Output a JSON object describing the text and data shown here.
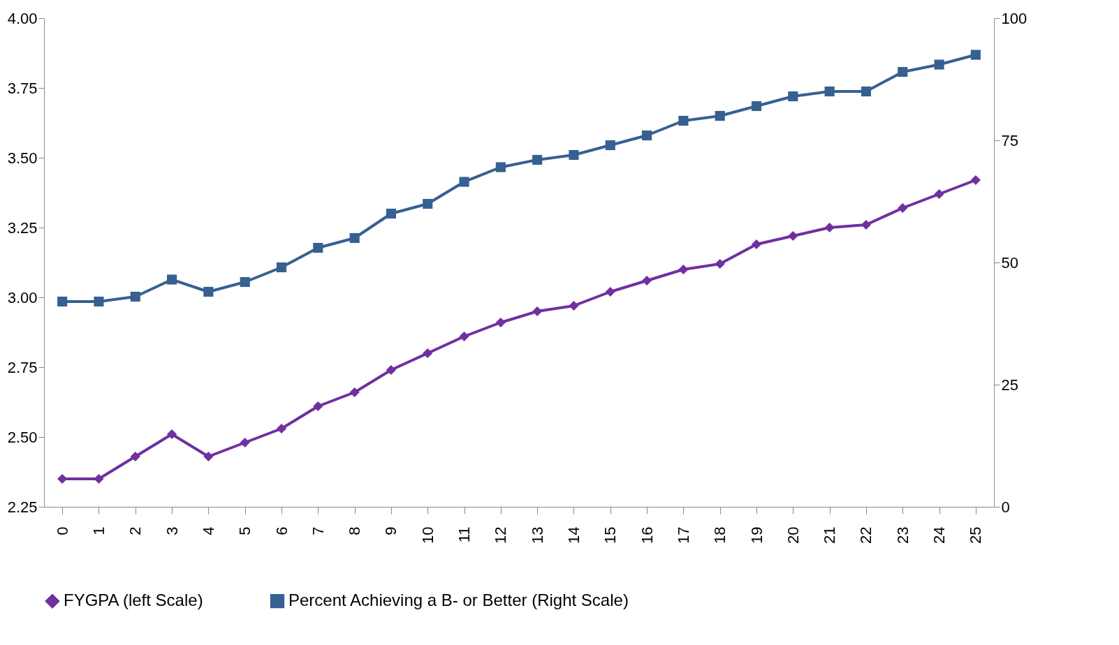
{
  "chart_data": {
    "type": "line",
    "categories": [
      "0",
      "1",
      "2",
      "3",
      "4",
      "5",
      "6",
      "7",
      "8",
      "9",
      "10",
      "11",
      "12",
      "13",
      "14",
      "15",
      "16",
      "17",
      "18",
      "19",
      "20",
      "21",
      "22",
      "23",
      "24",
      "25"
    ],
    "series": [
      {
        "name": "FYGPA (left Scale)",
        "color": "#7030a0",
        "marker": "diamond",
        "values": [
          2.35,
          2.35,
          2.43,
          2.51,
          2.43,
          2.48,
          2.53,
          2.61,
          2.66,
          2.74,
          2.8,
          2.86,
          2.91,
          2.95,
          2.97,
          3.02,
          3.06,
          3.1,
          3.12,
          3.19,
          3.22,
          3.25,
          3.26,
          3.32,
          3.37,
          3.42
        ]
      },
      {
        "name": "Percent Achieving a B- or Better (Right Scale)",
        "color": "#376092",
        "marker": "square",
        "axis": "y2",
        "values": [
          42,
          42,
          43,
          46.5,
          44,
          46,
          49,
          53,
          55,
          60,
          62,
          66.5,
          69.5,
          71,
          72,
          74,
          76,
          79,
          80,
          82,
          84,
          85,
          85,
          89,
          90.5,
          92.5
        ]
      }
    ],
    "ylim": [
      2.25,
      4
    ],
    "yticks": [
      {
        "value": 2.25,
        "label": "2.25"
      },
      {
        "value": 2.5,
        "label": "2.50"
      },
      {
        "value": 2.75,
        "label": "2.75"
      },
      {
        "value": 3,
        "label": "3.00"
      },
      {
        "value": 3.25,
        "label": "3.25"
      },
      {
        "value": 3.5,
        "label": "3.50"
      },
      {
        "value": 3.75,
        "label": "3.75"
      },
      {
        "value": 4,
        "label": "4.00"
      }
    ],
    "y2lim": [
      0,
      100
    ],
    "y2ticks": [
      0,
      25,
      50,
      75,
      100
    ],
    "grid": false,
    "legend": "bottom",
    "line_style": "solid"
  }
}
